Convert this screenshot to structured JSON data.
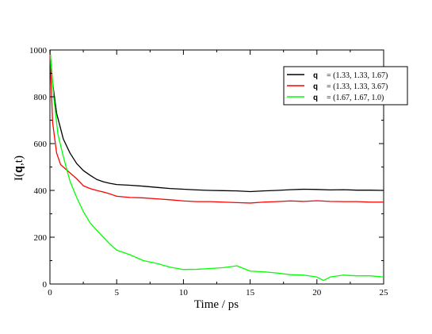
{
  "chart_data": {
    "type": "line",
    "xlabel": "Time / ps",
    "ylabel": "I(q,t)",
    "ylabel_parts": [
      "I(",
      "q",
      ",t)"
    ],
    "xlim": [
      0,
      25
    ],
    "ylim": [
      0,
      1000
    ],
    "xticks": [
      0,
      5,
      10,
      15,
      20,
      25
    ],
    "yticks": [
      0,
      200,
      400,
      600,
      800,
      1000
    ],
    "grid": false,
    "legend_position": "top-right",
    "series": [
      {
        "name": "q = (1.33, 1.33, 1.67)",
        "legend_symbol": "q",
        "legend_value": "= (1.33, 1.33, 1.67)",
        "color": "#000000",
        "x": [
          0,
          0.2,
          0.5,
          1,
          1.5,
          2,
          2.5,
          3,
          3.5,
          4,
          4.5,
          5,
          6,
          7,
          8,
          9,
          10,
          11,
          12,
          13,
          14,
          15,
          16,
          17,
          18,
          19,
          20,
          21,
          22,
          23,
          24,
          25
        ],
        "y": [
          1000,
          860,
          730,
          620,
          560,
          515,
          485,
          465,
          447,
          437,
          430,
          425,
          422,
          418,
          413,
          408,
          405,
          402,
          400,
          399,
          398,
          395,
          398,
          400,
          403,
          405,
          404,
          402,
          403,
          401,
          401,
          400
        ]
      },
      {
        "name": "q = (1.33, 1.33, 3.67)",
        "legend_symbol": "q",
        "legend_value": "= (1.33, 1.33, 3.67)",
        "color": "#ff0000",
        "x": [
          0,
          0.2,
          0.5,
          0.8,
          1,
          1.5,
          2,
          2.5,
          3,
          3.5,
          4,
          4.5,
          5,
          6,
          7,
          8,
          9,
          10,
          11,
          12,
          13,
          14,
          15,
          16,
          17,
          18,
          19,
          20,
          21,
          22,
          23,
          24,
          25
        ],
        "y": [
          1000,
          690,
          560,
          510,
          500,
          475,
          450,
          420,
          408,
          400,
          393,
          385,
          375,
          370,
          368,
          364,
          360,
          355,
          352,
          352,
          350,
          348,
          346,
          350,
          352,
          355,
          353,
          356,
          353,
          352,
          352,
          350,
          350
        ]
      },
      {
        "name": "q = (1.67, 1.67, 1.0)",
        "legend_symbol": "q",
        "legend_value": "= (1.67, 1.67, 1.0)",
        "color": "#00ff00",
        "x": [
          0,
          0.3,
          0.6,
          1,
          1.5,
          2,
          2.5,
          3,
          3.5,
          4,
          4.5,
          5,
          6,
          7,
          8,
          9,
          10,
          11,
          12,
          13,
          14,
          15,
          16,
          17,
          18,
          19,
          20,
          20.5,
          21,
          22,
          23,
          24,
          25
        ],
        "y": [
          1000,
          790,
          640,
          545,
          440,
          370,
          310,
          262,
          230,
          200,
          170,
          145,
          125,
          100,
          88,
          72,
          62,
          63,
          66,
          70,
          78,
          55,
          52,
          47,
          40,
          38,
          30,
          15,
          30,
          38,
          35,
          35,
          30
        ]
      }
    ]
  }
}
